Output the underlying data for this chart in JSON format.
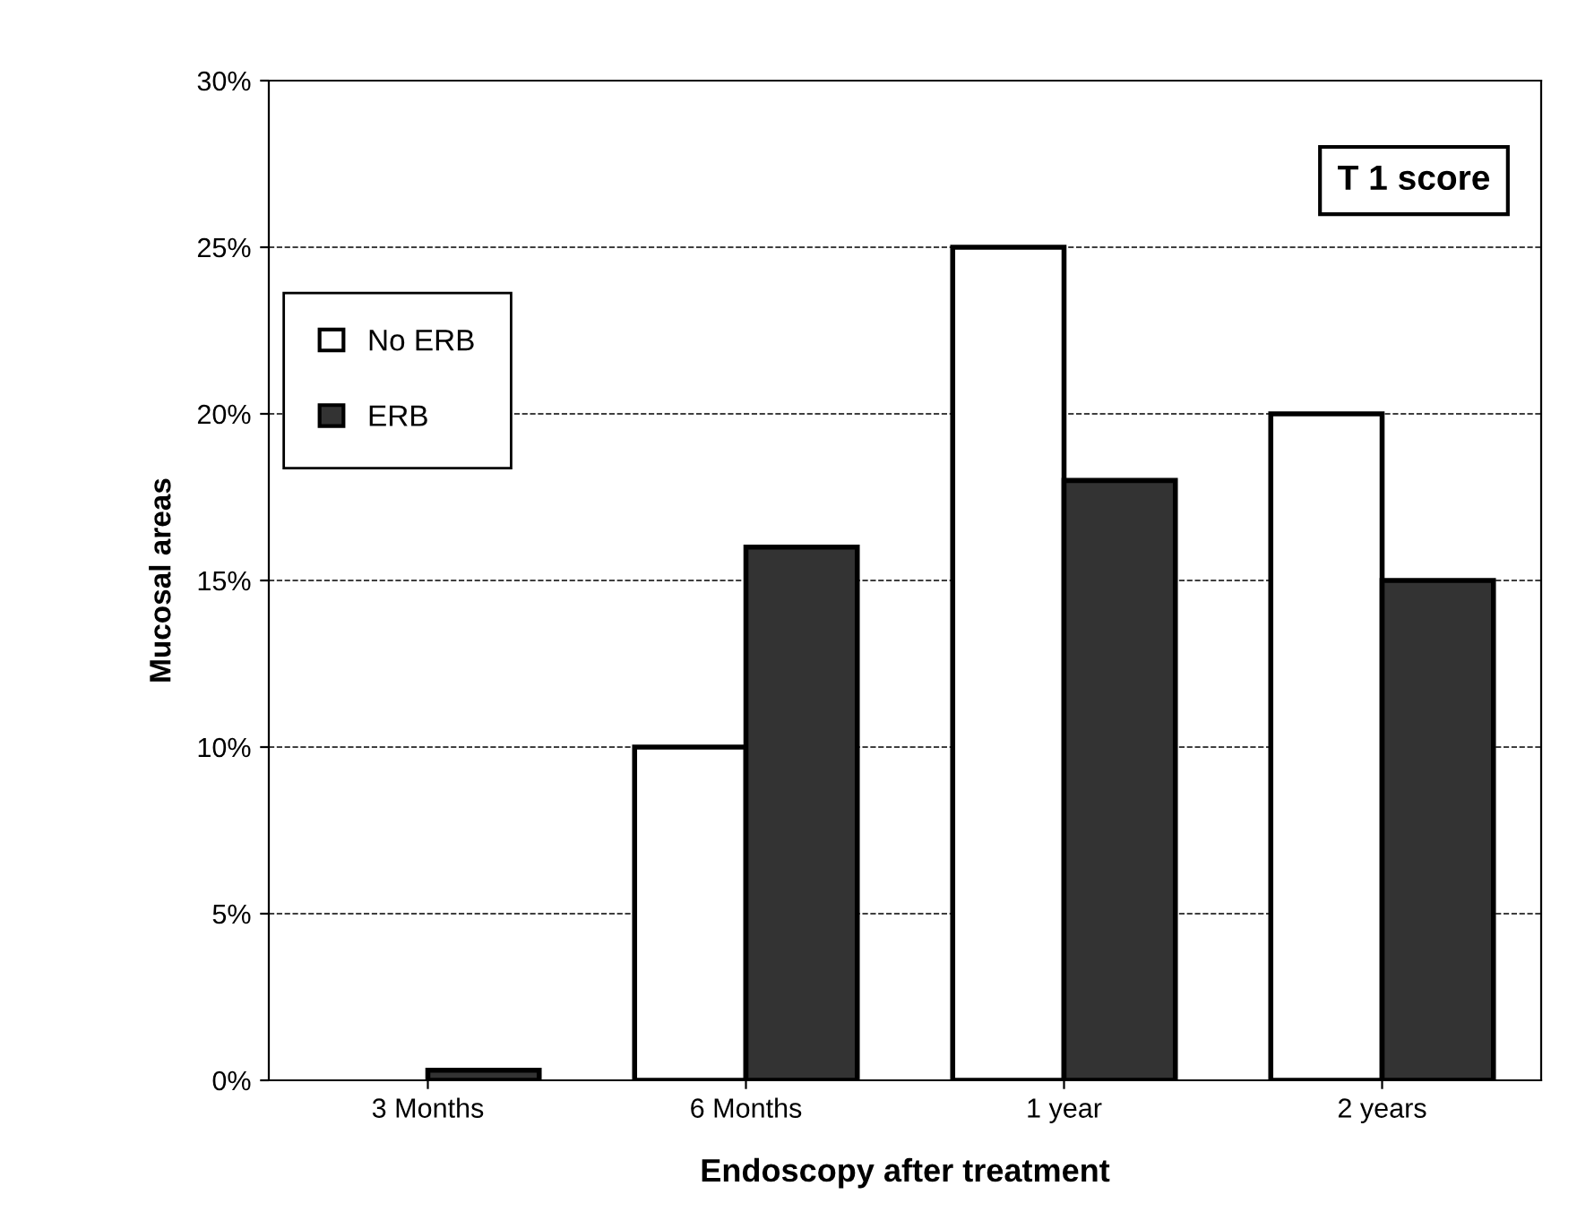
{
  "chart_data": {
    "type": "bar",
    "xlabel": "Endoscopy after treatment",
    "ylabel": "Mucosal areas",
    "categories": [
      "3 Months",
      "6 Months",
      "1 year",
      "2 years"
    ],
    "series": [
      {
        "name": "No ERB",
        "color": "#ffffff",
        "values": [
          null,
          10,
          25,
          20
        ]
      },
      {
        "name": "ERB",
        "color": "#333333",
        "values": [
          0.3,
          16,
          18,
          15
        ]
      }
    ],
    "annotations": [
      "T 1 score"
    ],
    "ylim": [
      0,
      30
    ],
    "yticks": [
      {
        "value": 0,
        "label": "0%"
      },
      {
        "value": 5,
        "label": "5%"
      },
      {
        "value": 10,
        "label": "10%"
      },
      {
        "value": 15,
        "label": "15%"
      },
      {
        "value": 20,
        "label": "20%"
      },
      {
        "value": 25,
        "label": "25%"
      },
      {
        "value": 30,
        "label": "30%"
      }
    ],
    "grid": "y",
    "line_style": "dashed",
    "legend": "left"
  }
}
